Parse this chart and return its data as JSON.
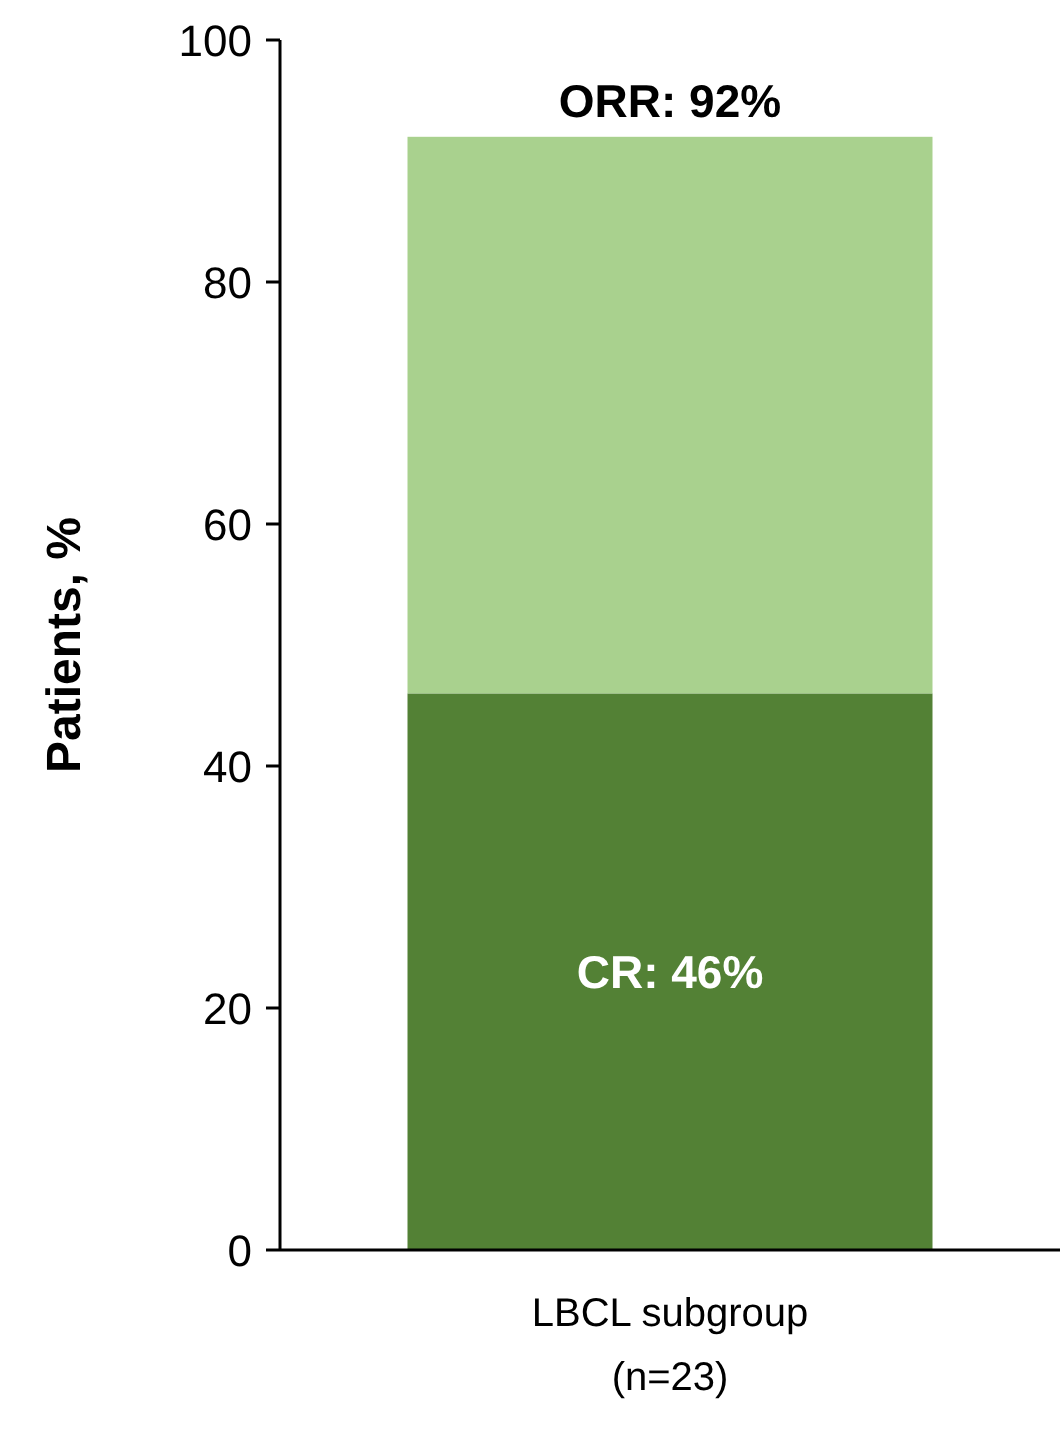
{
  "chart_data": {
    "type": "bar",
    "stacked": true,
    "ylabel": "Patients, %",
    "categories": [
      "LBCL subgroup (n=23)"
    ],
    "series": [
      {
        "color": "#538135",
        "values": [
          46
        ],
        "value_labels": [
          "CR: 46%"
        ]
      },
      {
        "color": "#a9d18e",
        "values": [
          46
        ]
      }
    ],
    "totals": [
      "ORR: 92%"
    ],
    "ylim": [
      0,
      100
    ],
    "yticks": [
      0,
      20,
      40,
      60,
      80,
      100
    ],
    "grid": false
  }
}
